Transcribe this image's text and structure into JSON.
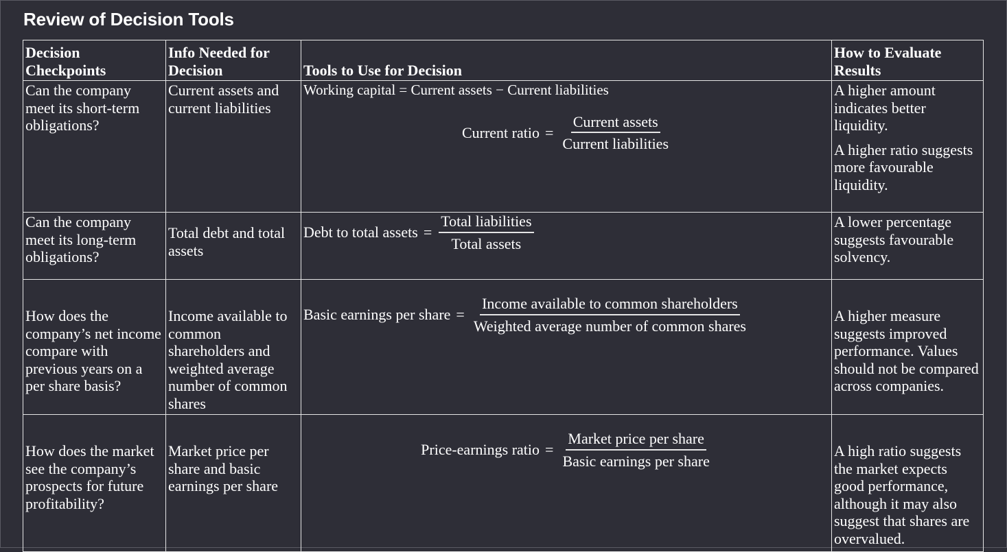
{
  "page_title": "Review of Decision Tools",
  "headers": {
    "checkpoints": "Decision Checkpoints",
    "info": "Info Needed for Decision",
    "tools": "Tools to Use for Decision",
    "evaluate": "How to Evaluate Results"
  },
  "rows": [
    {
      "checkpoint": "Can the company meet its short-term obligations?",
      "info": "Current assets and current liabilities",
      "tools": {
        "working_capital": "Working capital = Current assets − Current liabilities",
        "ratio_lhs": "Current ratio",
        "eq": "=",
        "numerator": "Current assets",
        "denominator": "Current liabilities"
      },
      "evaluate": [
        "A higher amount indicates better liquidity.",
        "A higher ratio suggests more favourable liquidity."
      ]
    },
    {
      "checkpoint": "Can the company meet its long-term obligations?",
      "info": "Total debt and total assets",
      "tools": {
        "lhs": "Debt to total assets",
        "eq": "=",
        "numerator": "Total liabilities",
        "denominator": "Total assets"
      },
      "evaluate": [
        "A lower percentage suggests favourable solvency."
      ]
    },
    {
      "checkpoint": "How does the company’s net income compare with previous years on a per share basis?",
      "info": "Income available to common shareholders and weighted average number of common shares",
      "tools": {
        "lhs": "Basic earnings per share",
        "eq": "=",
        "numerator": "Income available to common shareholders",
        "denominator": "Weighted average number of common shares"
      },
      "evaluate": [
        "A higher measure suggests improved performance. Values should not be compared across companies."
      ]
    },
    {
      "checkpoint": "How does the market see the company’s prospects for future profitability?",
      "info": "Market price per share and basic earnings per share",
      "tools": {
        "lhs": "Price-earnings ratio",
        "eq": "=",
        "numerator": "Market price per share",
        "denominator": "Basic earnings per share"
      },
      "evaluate": [
        "A high ratio suggests the market expects good performance, although it may also suggest that shares are overvalued."
      ]
    }
  ]
}
